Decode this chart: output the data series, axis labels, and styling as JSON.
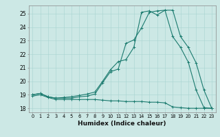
{
  "xlabel": "Humidex (Indice chaleur)",
  "bg_color": "#cce8e5",
  "line_color": "#1a7a6e",
  "xlim": [
    -0.5,
    23.5
  ],
  "ylim": [
    17.7,
    25.6
  ],
  "xticks": [
    0,
    1,
    2,
    3,
    4,
    5,
    6,
    7,
    8,
    9,
    10,
    11,
    12,
    13,
    14,
    15,
    16,
    17,
    18,
    19,
    20,
    21,
    22,
    23
  ],
  "yticks": [
    18,
    19,
    20,
    21,
    22,
    23,
    24,
    25
  ],
  "series1_x": [
    0,
    1,
    2,
    3,
    4,
    5,
    6,
    7,
    8,
    9,
    10,
    11,
    12,
    13,
    14,
    15,
    16,
    17,
    18,
    19,
    20,
    21,
    22,
    23
  ],
  "series1_y": [
    18.9,
    19.0,
    18.8,
    18.65,
    18.65,
    18.65,
    18.65,
    18.65,
    18.65,
    18.6,
    18.55,
    18.55,
    18.5,
    18.5,
    18.5,
    18.45,
    18.45,
    18.4,
    18.1,
    18.05,
    18.0,
    18.0,
    18.0,
    18.0
  ],
  "series2_x": [
    0,
    1,
    2,
    3,
    4,
    5,
    6,
    7,
    8,
    9,
    10,
    11,
    12,
    13,
    14,
    15,
    16,
    17,
    18,
    19,
    20,
    21,
    22,
    23
  ],
  "series2_y": [
    19.0,
    19.1,
    18.85,
    18.75,
    18.75,
    18.75,
    18.85,
    18.9,
    19.05,
    19.9,
    20.7,
    20.9,
    22.8,
    23.05,
    23.95,
    25.1,
    25.2,
    25.25,
    25.25,
    23.3,
    22.5,
    21.35,
    19.35,
    18.0
  ],
  "series3_x": [
    0,
    1,
    2,
    3,
    4,
    5,
    6,
    7,
    8,
    9,
    10,
    11,
    12,
    13,
    14,
    15,
    16,
    17,
    18,
    19,
    20,
    21,
    22,
    23
  ],
  "series3_y": [
    19.0,
    19.1,
    18.85,
    18.75,
    18.8,
    18.85,
    18.95,
    19.05,
    19.2,
    20.0,
    20.85,
    21.45,
    21.6,
    22.5,
    25.1,
    25.2,
    24.9,
    25.25,
    23.3,
    22.5,
    21.4,
    19.35,
    18.05,
    18.0
  ]
}
